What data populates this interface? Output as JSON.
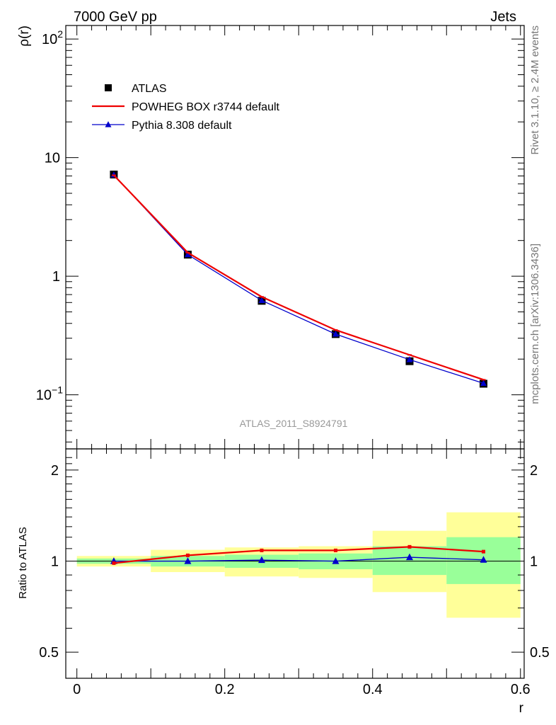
{
  "header": {
    "left": "7000 GeV pp",
    "right": "Jets"
  },
  "side_text": {
    "rivet": "Rivet 3.1.10, ≥ 2.4M events",
    "mcplots": "mcplots.cern.ch [arXiv:1306.3436]"
  },
  "analysis_label": "ATLAS_2011_S8924791",
  "chart_data": [
    {
      "type": "line",
      "panel": "main",
      "ylabel": "ρ(r)",
      "yscale": "log",
      "ylim": [
        0.035,
        130
      ],
      "xlim": [
        -0.015,
        0.605
      ],
      "yticks": [
        {
          "value": 0.1,
          "base": "10",
          "exp": "−1"
        },
        {
          "value": 1,
          "base": "1",
          "exp": ""
        },
        {
          "value": 10,
          "base": "10",
          "exp": ""
        },
        {
          "value": 100,
          "base": "10",
          "exp": "2"
        }
      ],
      "x": [
        0.05,
        0.15,
        0.25,
        0.35,
        0.45,
        0.55
      ],
      "series": [
        {
          "name": "ATLAS",
          "style": "square",
          "color": "#000000",
          "values": [
            7.2,
            1.52,
            0.62,
            0.325,
            0.192,
            0.124
          ]
        },
        {
          "name": "POWHEG BOX r3744 default",
          "style": "line",
          "color": "#ee0000",
          "values": [
            7.1,
            1.58,
            0.67,
            0.352,
            0.217,
            0.134
          ]
        },
        {
          "name": "Pythia 8.308 default",
          "style": "triangle",
          "color": "#0000cc",
          "values": [
            7.15,
            1.52,
            0.625,
            0.325,
            0.198,
            0.125
          ]
        }
      ],
      "legend": "top-left"
    },
    {
      "type": "line",
      "panel": "ratio",
      "xlabel": "r",
      "ylabel": "Ratio to ATLAS",
      "yscale": "log",
      "ylim": [
        0.41,
        2.35
      ],
      "xlim": [
        -0.015,
        0.605
      ],
      "yticks": [
        0.5,
        1,
        2
      ],
      "xticks": [
        {
          "value": 0,
          "label": "0"
        },
        {
          "value": 0.2,
          "label": "0.2"
        },
        {
          "value": 0.4,
          "label": "0.4"
        },
        {
          "value": 0.6,
          "label": "0.6"
        }
      ],
      "bins": [
        [
          0,
          0.1
        ],
        [
          0.1,
          0.2
        ],
        [
          0.2,
          0.3
        ],
        [
          0.3,
          0.4
        ],
        [
          0.4,
          0.5
        ],
        [
          0.5,
          0.6
        ]
      ],
      "band_yellow": [
        [
          0.96,
          1.04
        ],
        [
          0.92,
          1.09
        ],
        [
          0.89,
          1.11
        ],
        [
          0.88,
          1.12
        ],
        [
          0.79,
          1.26
        ],
        [
          0.65,
          1.45
        ]
      ],
      "band_green": [
        [
          0.98,
          1.02
        ],
        [
          0.96,
          1.04
        ],
        [
          0.95,
          1.05
        ],
        [
          0.94,
          1.06
        ],
        [
          0.9,
          1.12
        ],
        [
          0.84,
          1.2
        ]
      ],
      "x": [
        0.05,
        0.15,
        0.25,
        0.35,
        0.45,
        0.55
      ],
      "series": [
        {
          "name": "POWHEG BOX r3744 default",
          "style": "line",
          "color": "#ee0000",
          "values": [
            0.985,
            1.045,
            1.085,
            1.085,
            1.115,
            1.075
          ]
        },
        {
          "name": "Pythia 8.308 default",
          "style": "triangle",
          "color": "#0000cc",
          "values": [
            1.0,
            1.0,
            1.008,
            1.0,
            1.03,
            1.01
          ]
        }
      ]
    }
  ]
}
